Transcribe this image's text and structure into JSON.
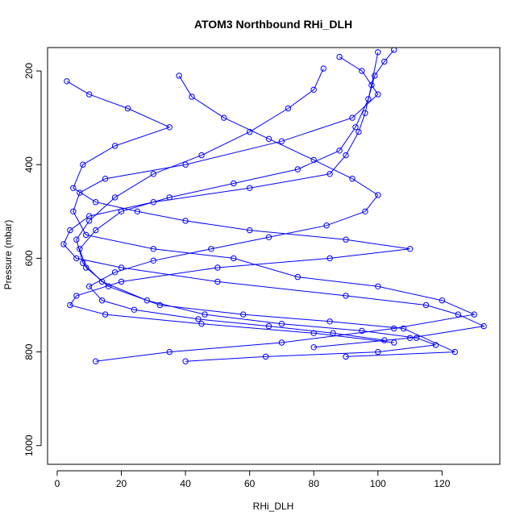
{
  "chart_data": {
    "type": "scatter",
    "title": "ATOM3 Northbound RHi_DLH",
    "xlabel": "RHi_DLH",
    "ylabel": "Pressure (mbar)",
    "xlim": [
      -3,
      138
    ],
    "ylim": [
      1040,
      150
    ],
    "y_inverted": true,
    "x_ticks": [
      0,
      20,
      40,
      60,
      80,
      100,
      120
    ],
    "y_ticks": [
      200,
      400,
      600,
      800,
      1000
    ],
    "grid": false,
    "legend": "none",
    "marker": "open-circle",
    "connected": true,
    "color": "#0000ff",
    "series": [
      {
        "x": [
          3,
          10,
          22,
          35,
          18,
          8,
          5,
          12,
          25,
          40,
          60,
          90,
          110,
          85,
          50,
          20,
          6,
          4,
          15,
          45,
          80,
          105
        ],
        "y": [
          222,
          250,
          280,
          320,
          360,
          400,
          450,
          480,
          500,
          520,
          540,
          560,
          580,
          600,
          620,
          650,
          680,
          700,
          720,
          740,
          760,
          780
        ]
      },
      {
        "x": [
          88,
          95,
          100,
          92,
          70,
          40,
          15,
          7,
          5,
          9,
          30,
          55,
          75,
          100,
          120,
          130,
          105,
          70,
          35,
          12
        ],
        "y": [
          170,
          200,
          250,
          300,
          350,
          400,
          430,
          460,
          500,
          550,
          580,
          600,
          640,
          660,
          690,
          720,
          750,
          780,
          800,
          820
        ]
      },
      {
        "x": [
          100,
          98,
          96,
          94,
          90,
          85,
          60,
          30,
          10,
          4,
          2,
          6,
          20,
          50,
          90,
          115,
          125,
          133,
          110,
          80
        ],
        "y": [
          160,
          230,
          290,
          330,
          380,
          420,
          450,
          480,
          510,
          540,
          570,
          600,
          620,
          650,
          680,
          700,
          720,
          745,
          770,
          790
        ]
      },
      {
        "x": [
          83,
          80,
          72,
          60,
          45,
          30,
          18,
          10,
          6,
          8,
          14,
          28,
          46,
          70,
          95,
          112,
          118,
          100,
          65,
          40
        ],
        "y": [
          195,
          240,
          280,
          330,
          380,
          420,
          470,
          520,
          560,
          610,
          650,
          690,
          720,
          740,
          755,
          770,
          785,
          800,
          810,
          820
        ]
      },
      {
        "x": [
          105,
          102,
          99,
          97,
          93,
          88,
          75,
          55,
          35,
          20,
          12,
          7,
          9,
          16,
          32,
          58,
          85,
          108,
          124,
          90
        ],
        "y": [
          155,
          180,
          210,
          260,
          320,
          370,
          410,
          440,
          470,
          500,
          540,
          580,
          620,
          660,
          700,
          720,
          735,
          750,
          800,
          810
        ]
      },
      {
        "x": [
          38,
          42,
          52,
          66,
          80,
          92,
          100,
          96,
          84,
          66,
          48,
          30,
          18,
          10,
          14,
          24,
          44,
          66,
          86,
          102
        ],
        "y": [
          210,
          255,
          300,
          345,
          390,
          430,
          465,
          500,
          530,
          555,
          580,
          605,
          630,
          660,
          690,
          710,
          730,
          745,
          760,
          775
        ]
      }
    ]
  }
}
